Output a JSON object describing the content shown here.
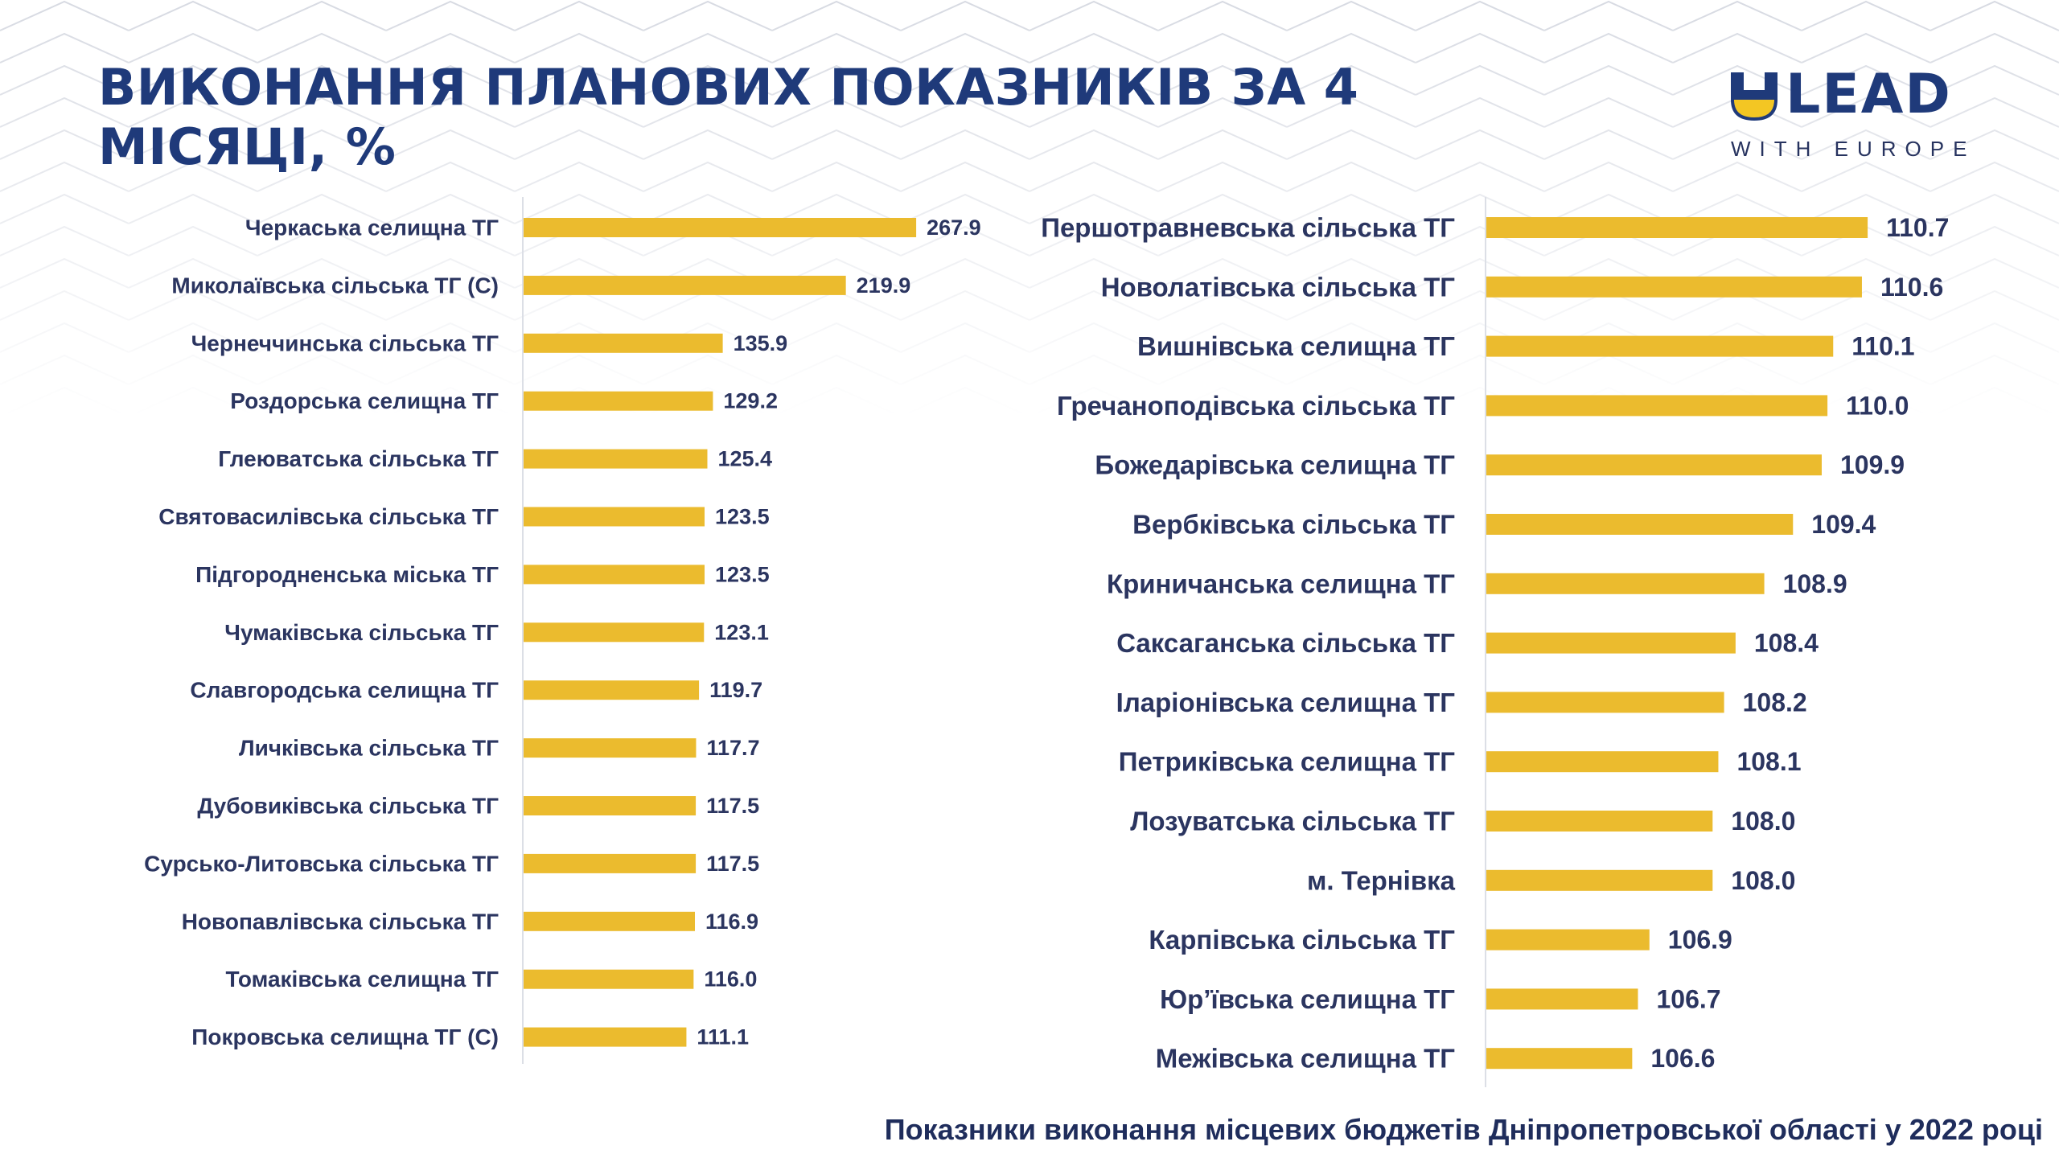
{
  "title": {
    "line1": "ВИКОНАННЯ ПЛАНОВИХ ПОКАЗНИКІВ ЗА 4",
    "line2": "МІСЯЦІ, %"
  },
  "logo": {
    "mark": "U",
    "name": "LEAD",
    "tagline": "WITH EUROPE"
  },
  "footer": "Показники виконання місцевих бюджетів Дніпропетровської області у 2022 році",
  "colors": {
    "bar": "#ebbb2e",
    "text": "#2b3560",
    "title": "#1f3a7a",
    "axis": "#dcdfe6",
    "logo_yellow": "#f3c623"
  },
  "chart_data": [
    {
      "type": "bar",
      "orientation": "horizontal",
      "title": "",
      "xlim": [
        0,
        270
      ],
      "grid": false,
      "categories": [
        "Черкаська селищна ТГ",
        "Миколаївська сільська ТГ (С)",
        "Чернеччинська сільська ТГ",
        "Роздорська селищна ТГ",
        "Глеюватська сільська ТГ",
        "Святовасилівська сільська ТГ",
        "Підгородненська міська ТГ",
        "Чумаківська сільська ТГ",
        "Славгородська селищна ТГ",
        "Личківська сільська ТГ",
        "Дубовиківська сільська ТГ",
        "Сурсько-Литовська сільська ТГ",
        "Новопавлівська сільська ТГ",
        "Томаківська селищна ТГ",
        "Покровська селищна ТГ (С)"
      ],
      "values": [
        267.9,
        219.9,
        135.9,
        129.2,
        125.4,
        123.5,
        123.5,
        123.1,
        119.7,
        117.7,
        117.5,
        117.5,
        116.9,
        116.0,
        111.1
      ],
      "labels": [
        "267.9",
        "219.9",
        "135.9",
        "129.2",
        "125.4",
        "123.5",
        "123.5",
        "123.1",
        "119.7",
        "117.7",
        "117.5",
        "117.5",
        "116.9",
        "116.0",
        "111.1"
      ]
    },
    {
      "type": "bar",
      "orientation": "horizontal",
      "title": "",
      "xlim": [
        104.06,
        111.2
      ],
      "grid": false,
      "categories": [
        "Першотравневська сільська ТГ",
        "Новолатівська сільська ТГ",
        "Вишнівська селищна ТГ",
        "Гречаноподівська сільська ТГ",
        "Божедарівська селищна ТГ",
        "Вербківська сільська ТГ",
        "Криничанська селищна ТГ",
        "Саксаганська сільська ТГ",
        "Іларіонівська селищна ТГ",
        "Петриківська селищна ТГ",
        "Лозуватська сільська ТГ",
        "м. Тернівка",
        "Карпівська сільська ТГ",
        "Юр’ївська селищна ТГ",
        "Межівська селищна ТГ"
      ],
      "values": [
        110.7,
        110.6,
        110.1,
        110.0,
        109.9,
        109.4,
        108.9,
        108.4,
        108.2,
        108.1,
        108.0,
        108.0,
        106.9,
        106.7,
        106.6
      ],
      "labels": [
        "110.7",
        "110.6",
        "110.1",
        "110.0",
        "109.9",
        "109.4",
        "108.9",
        "108.4",
        "108.2",
        "108.1",
        "108.0",
        "108.0",
        "106.9",
        "106.7",
        "106.6"
      ]
    }
  ]
}
